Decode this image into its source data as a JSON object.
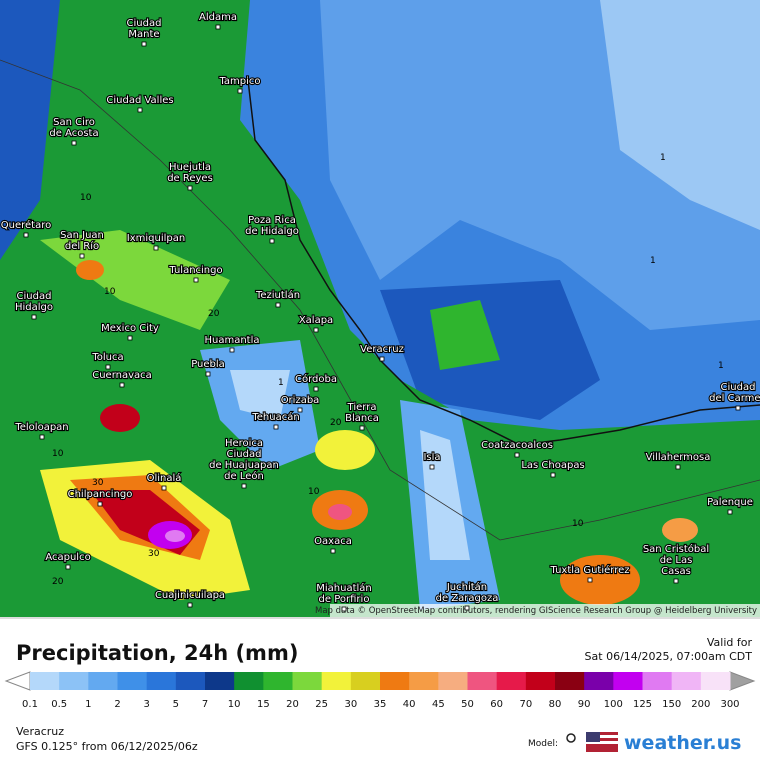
{
  "map": {
    "cities": [
      {
        "lines": [
          "Ciudad",
          "Mante"
        ]
      },
      {
        "lines": [
          "Aldama"
        ]
      },
      {
        "lines": [
          "Tampico"
        ]
      },
      {
        "lines": [
          "Ciudad Valles"
        ]
      },
      {
        "lines": [
          "San Ciro",
          "de Acosta"
        ]
      },
      {
        "lines": [
          "Huejutla",
          "de Reyes"
        ]
      },
      {
        "lines": [
          "Poza Rica",
          "de Hidalgo"
        ]
      },
      {
        "lines": [
          "Querétaro"
        ]
      },
      {
        "lines": [
          "San Juan",
          "del Río"
        ]
      },
      {
        "lines": [
          "Ixmiquilpan"
        ]
      },
      {
        "lines": [
          "Tulancingo"
        ]
      },
      {
        "lines": [
          "Teziutlán"
        ]
      },
      {
        "lines": [
          "Ciudad",
          "Hidalgo"
        ]
      },
      {
        "lines": [
          "Xalapa"
        ]
      },
      {
        "lines": [
          "Mexico City"
        ]
      },
      {
        "lines": [
          "Huamantla"
        ]
      },
      {
        "lines": [
          "Toluca"
        ]
      },
      {
        "lines": [
          "Puebla"
        ]
      },
      {
        "lines": [
          "Veracruz"
        ]
      },
      {
        "lines": [
          "Cuernavaca"
        ]
      },
      {
        "lines": [
          "Córdoba"
        ]
      },
      {
        "lines": [
          "Orizaba"
        ]
      },
      {
        "lines": [
          "Tierra",
          "Blanca"
        ]
      },
      {
        "lines": [
          "Tehuacán"
        ]
      },
      {
        "lines": [
          "Teloloapan"
        ]
      },
      {
        "lines": [
          "Heroica",
          "Ciudad",
          "de Huajuapan",
          "de León"
        ]
      },
      {
        "lines": [
          "Coatzacoalcos"
        ]
      },
      {
        "lines": [
          "Las Choapas"
        ]
      },
      {
        "lines": [
          "Villahermosa"
        ]
      },
      {
        "lines": [
          "Isla"
        ]
      },
      {
        "lines": [
          "Olinalá"
        ]
      },
      {
        "lines": [
          "Chilpancingo"
        ]
      },
      {
        "lines": [
          "Oaxaca"
        ]
      },
      {
        "lines": [
          "San Cristóbal",
          "de Las",
          "Casas"
        ]
      },
      {
        "lines": [
          "Tuxtla Gutiérrez"
        ]
      },
      {
        "lines": [
          "Acapulco"
        ]
      },
      {
        "lines": [
          "Cuajinicuilapa"
        ]
      },
      {
        "lines": [
          "Miahuatlán",
          "de Porfirio"
        ]
      },
      {
        "lines": [
          "Juchitán",
          "de Zaragoza"
        ]
      },
      {
        "lines": [
          "Palenque"
        ]
      },
      {
        "lines": [
          "Ciudad",
          "del Carmen"
        ]
      }
    ],
    "contour_labels": [
      "1",
      "1",
      "1",
      "1",
      "10",
      "10",
      "20",
      "20",
      "30",
      "30",
      "10",
      "20",
      "10",
      "10"
    ],
    "attribution": "Map data © OpenStreetMap contributors, rendering GIScience Research Group @ Heidelberg University"
  },
  "footer": {
    "title": "Precipitation, 24h (mm)",
    "valid_label": "Valid for",
    "valid_time": "Sat 06/14/2025, 07:00am CDT",
    "region": "Veracruz",
    "model_run": "GFS 0.125° from  06/12/2025/06z",
    "model_label": "Model:",
    "brand": "weather.us"
  },
  "legend": {
    "ticks": [
      "0.1",
      "0.5",
      "1",
      "2",
      "3",
      "5",
      "7",
      "10",
      "15",
      "20",
      "25",
      "30",
      "35",
      "40",
      "45",
      "50",
      "60",
      "70",
      "80",
      "90",
      "100",
      "125",
      "150",
      "200",
      "300"
    ],
    "colors": [
      "#b4d8fa",
      "#8cc2f6",
      "#63a9f0",
      "#3f90e8",
      "#2a76da",
      "#1c58bd",
      "#0d388a",
      "#109030",
      "#2fb52e",
      "#7cd83c",
      "#f2f23a",
      "#d8cf1f",
      "#ef7a12",
      "#f59c45",
      "#f6ad80",
      "#ef5580",
      "#e61a4a",
      "#c2001a",
      "#8a0012",
      "#7a00aa",
      "#c200f0",
      "#e07af2",
      "#f0b5f6",
      "#f8e2f8"
    ],
    "low_color": "#ffffff",
    "high_color": "#a0a0a0"
  }
}
